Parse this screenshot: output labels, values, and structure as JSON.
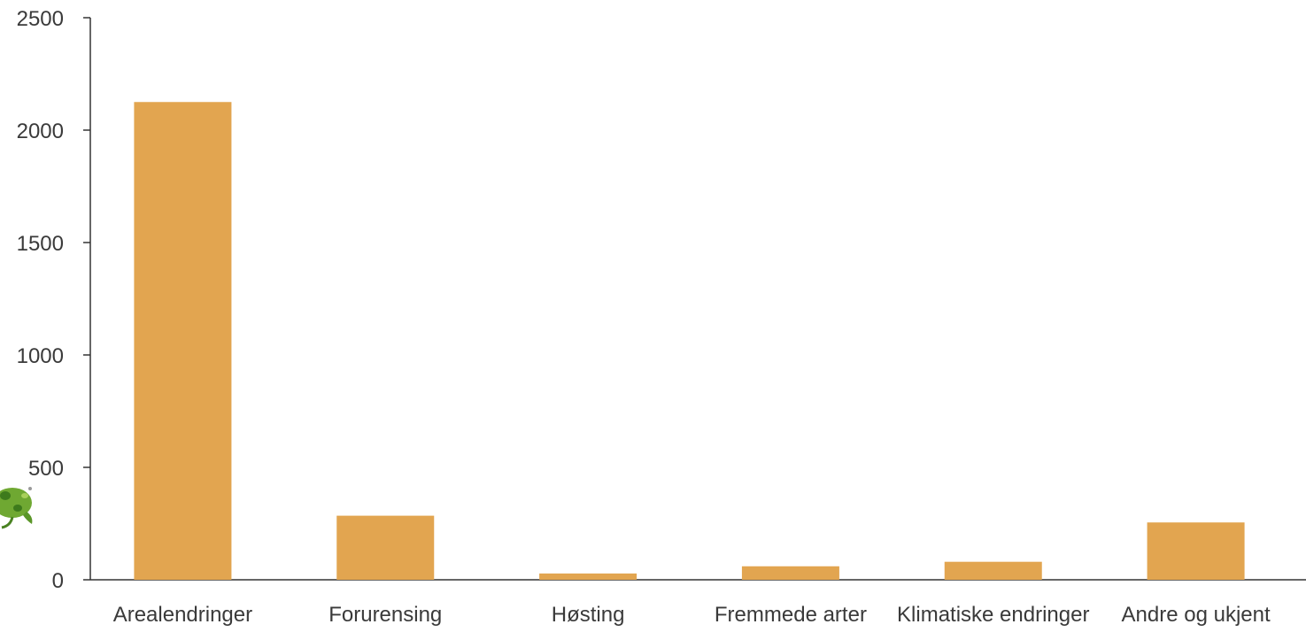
{
  "chart_data": {
    "type": "bar",
    "title": "",
    "xlabel": "",
    "ylabel": "",
    "categories": [
      "Arealendringer",
      "Forurensing",
      "Høsting",
      "Fremmede arter",
      "Klimatiske endringer",
      "Andre og ukjent"
    ],
    "values": [
      2125,
      285,
      28,
      60,
      80,
      255
    ],
    "ylim": [
      0,
      2500
    ],
    "yticks": [
      0,
      500,
      1000,
      1500,
      2000,
      2500
    ],
    "grid": false,
    "legend": "none",
    "bar_color": "#E2A550"
  },
  "decor": {
    "partial_icon": "green-frog-icon"
  }
}
